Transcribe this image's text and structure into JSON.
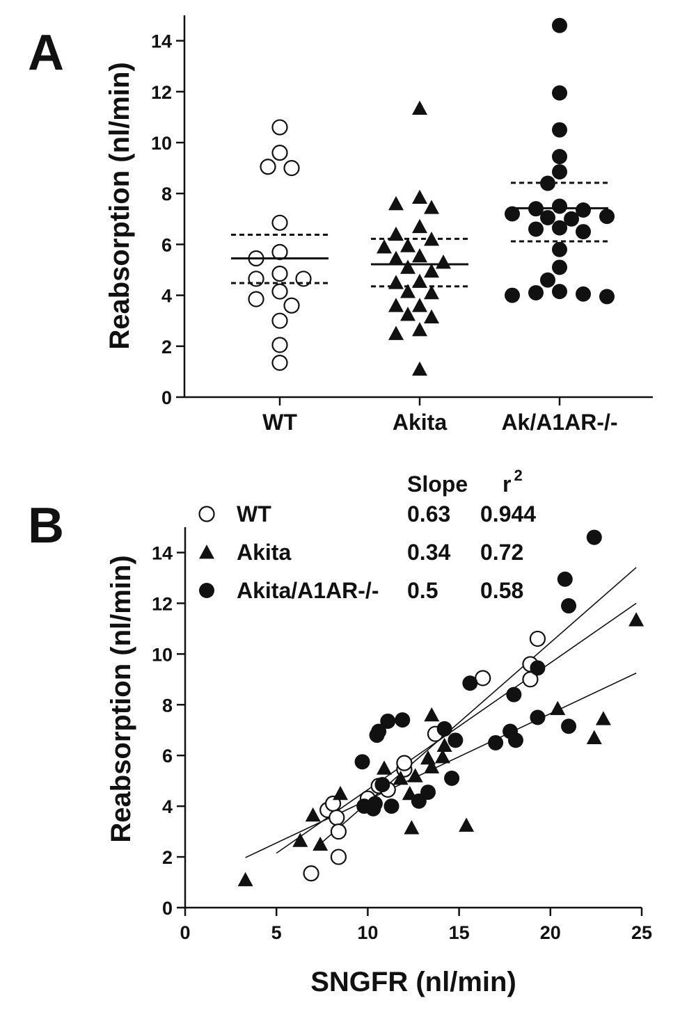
{
  "chart_data": [
    {
      "panel": "A",
      "type": "scatter",
      "subtype": "dot-plot",
      "ylabel": "Reabsorption (nl/min)",
      "ylim": [
        0,
        15
      ],
      "yticks": [
        0,
        2,
        4,
        6,
        8,
        10,
        12,
        14
      ],
      "categories": [
        "WT",
        "Akita",
        "Ak/A1AR-/-"
      ],
      "series": [
        {
          "category": "WT",
          "marker": "open-circle",
          "values": [
            10.6,
            9.6,
            9.05,
            9.0,
            6.85,
            5.7,
            5.45,
            4.85,
            4.65,
            4.65,
            4.15,
            3.85,
            3.6,
            3.0,
            2.05,
            1.35
          ],
          "mean": 5.45,
          "ci": [
            4.48,
            6.38
          ]
        },
        {
          "category": "Akita",
          "marker": "filled-triangle",
          "values": [
            11.35,
            7.85,
            7.6,
            7.45,
            6.7,
            6.4,
            6.2,
            5.95,
            5.9,
            5.55,
            5.45,
            5.3,
            5.1,
            4.95,
            4.55,
            4.5,
            4.15,
            4.1,
            3.6,
            3.6,
            3.25,
            3.15,
            2.65,
            2.5,
            1.1
          ],
          "mean": 5.22,
          "ci": [
            4.35,
            6.22
          ]
        },
        {
          "category": "Ak/A1AR-/-",
          "marker": "filled-circle",
          "values": [
            14.6,
            11.95,
            10.5,
            9.45,
            8.85,
            8.4,
            7.5,
            7.4,
            7.35,
            7.2,
            7.1,
            7.05,
            7.0,
            6.65,
            6.6,
            6.5,
            5.8,
            5.1,
            4.6,
            4.15,
            4.1,
            4.05,
            4.0,
            3.95
          ],
          "mean": 7.42,
          "ci": [
            6.12,
            8.42
          ]
        }
      ]
    },
    {
      "panel": "B",
      "type": "scatter",
      "xlabel": "SNGFR (nl/min)",
      "ylabel": "Reabsorption (nl/min)",
      "xlim": [
        0,
        25
      ],
      "ylim": [
        0,
        15
      ],
      "xticks": [
        0,
        5,
        10,
        15,
        20,
        25
      ],
      "yticks": [
        0,
        2,
        4,
        6,
        8,
        10,
        12,
        14
      ],
      "legend_header": {
        "slope": "Slope",
        "r2": "r",
        "r2_sup": "2"
      },
      "series": [
        {
          "name": "WT",
          "marker": "open-circle",
          "slope_label": "0.63",
          "r2_label": "0.944",
          "points": [
            [
              6.9,
              1.35
            ],
            [
              7.8,
              3.85
            ],
            [
              8.1,
              4.1
            ],
            [
              8.3,
              3.55
            ],
            [
              8.4,
              2.0
            ],
            [
              8.4,
              3.0
            ],
            [
              10.0,
              4.3
            ],
            [
              10.6,
              4.8
            ],
            [
              11.1,
              4.65
            ],
            [
              12.0,
              5.45
            ],
            [
              12.0,
              5.7
            ],
            [
              13.7,
              6.85
            ],
            [
              16.3,
              9.05
            ],
            [
              18.9,
              9.0
            ],
            [
              18.9,
              9.6
            ],
            [
              19.3,
              10.6
            ]
          ],
          "fit": {
            "x0": 7.4,
            "x1": 24.7,
            "slope": 0.63,
            "intercept": -2.15
          }
        },
        {
          "name": "Akita",
          "marker": "filled-triangle",
          "slope_label": "0.34",
          "r2_label": "0.72",
          "points": [
            [
              3.3,
              1.1
            ],
            [
              6.3,
              2.65
            ],
            [
              7.0,
              3.65
            ],
            [
              7.4,
              2.5
            ],
            [
              8.5,
              4.5
            ],
            [
              10.9,
              5.5
            ],
            [
              11.8,
              5.1
            ],
            [
              12.3,
              4.5
            ],
            [
              12.4,
              3.15
            ],
            [
              12.6,
              5.2
            ],
            [
              13.3,
              5.9
            ],
            [
              13.5,
              7.6
            ],
            [
              13.5,
              5.55
            ],
            [
              14.1,
              5.95
            ],
            [
              14.2,
              6.4
            ],
            [
              15.4,
              3.25
            ],
            [
              20.4,
              7.85
            ],
            [
              22.4,
              6.7
            ],
            [
              22.9,
              7.45
            ],
            [
              24.7,
              11.35
            ]
          ],
          "fit": {
            "x0": 3.3,
            "x1": 24.7,
            "slope": 0.34,
            "intercept": 0.85
          }
        },
        {
          "name": "Akita/A1AR-/-",
          "marker": "filled-circle",
          "slope_label": "0.5",
          "r2_label": "0.58",
          "points": [
            [
              9.7,
              5.75
            ],
            [
              9.8,
              4.0
            ],
            [
              10.3,
              3.9
            ],
            [
              10.4,
              4.1
            ],
            [
              10.5,
              6.8
            ],
            [
              10.6,
              6.95
            ],
            [
              10.8,
              4.85
            ],
            [
              11.1,
              7.35
            ],
            [
              11.3,
              4.0
            ],
            [
              11.9,
              7.4
            ],
            [
              12.8,
              4.2
            ],
            [
              13.3,
              4.55
            ],
            [
              14.2,
              7.05
            ],
            [
              14.6,
              5.1
            ],
            [
              14.8,
              6.6
            ],
            [
              15.6,
              8.85
            ],
            [
              17.0,
              6.5
            ],
            [
              17.8,
              6.95
            ],
            [
              18.0,
              8.4
            ],
            [
              18.1,
              6.6
            ],
            [
              19.3,
              7.5
            ],
            [
              19.3,
              9.45
            ],
            [
              20.8,
              12.95
            ],
            [
              21.0,
              11.9
            ],
            [
              21.0,
              7.15
            ],
            [
              22.4,
              14.6
            ]
          ],
          "fit": {
            "x0": 5.0,
            "x1": 24.7,
            "slope": 0.5,
            "intercept": -0.35
          }
        }
      ]
    }
  ]
}
